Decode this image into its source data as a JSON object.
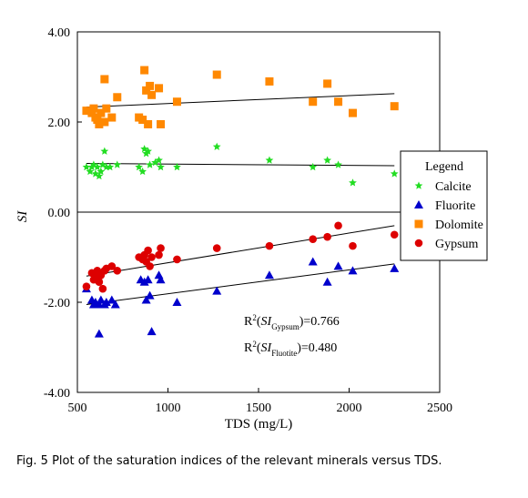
{
  "caption": "Fig. 5 Plot of the saturation indices of the relevant minerals versus TDS.",
  "chart_data": {
    "type": "scatter",
    "xlabel": "TDS (mg/L)",
    "ylabel": "SI",
    "xlim": [
      500,
      2500
    ],
    "ylim": [
      -4,
      4
    ],
    "x_ticks": [
      "500",
      "1000",
      "1500",
      "2000",
      "2500"
    ],
    "y_ticks": [
      "4.00",
      "2.00",
      "0.00",
      "-2.00",
      "-4.00"
    ],
    "zero_line": true,
    "legend": {
      "title": "Legend",
      "position": "right"
    },
    "series": [
      {
        "name": "Calcite",
        "marker": "star",
        "color": "#22dd22",
        "points": [
          [
            550,
            1.0
          ],
          [
            570,
            0.9
          ],
          [
            580,
            1.0
          ],
          [
            590,
            1.05
          ],
          [
            600,
            0.85
          ],
          [
            610,
            1.0
          ],
          [
            620,
            0.8
          ],
          [
            630,
            0.9
          ],
          [
            640,
            1.05
          ],
          [
            650,
            1.35
          ],
          [
            660,
            1.0
          ],
          [
            680,
            1.0
          ],
          [
            720,
            1.05
          ],
          [
            840,
            1.0
          ],
          [
            860,
            0.9
          ],
          [
            870,
            1.4
          ],
          [
            880,
            1.3
          ],
          [
            890,
            1.35
          ],
          [
            900,
            1.05
          ],
          [
            930,
            1.1
          ],
          [
            950,
            1.15
          ],
          [
            960,
            1.0
          ],
          [
            1050,
            1.0
          ],
          [
            1270,
            1.45
          ],
          [
            1560,
            1.15
          ],
          [
            1800,
            1.0
          ],
          [
            1880,
            1.15
          ],
          [
            1940,
            1.05
          ],
          [
            2020,
            0.65
          ],
          [
            2250,
            0.85
          ]
        ],
        "trend": [
          [
            550,
            1.08
          ],
          [
            2250,
            1.03
          ]
        ]
      },
      {
        "name": "Fluorite",
        "marker": "triangle",
        "color": "#0000cc",
        "points": [
          [
            550,
            -1.7
          ],
          [
            580,
            -1.95
          ],
          [
            590,
            -2.05
          ],
          [
            600,
            -2.0
          ],
          [
            620,
            -2.05
          ],
          [
            630,
            -1.95
          ],
          [
            650,
            -2.05
          ],
          [
            660,
            -2.0
          ],
          [
            690,
            -1.95
          ],
          [
            710,
            -2.05
          ],
          [
            620,
            -2.7
          ],
          [
            850,
            -1.5
          ],
          [
            870,
            -1.55
          ],
          [
            880,
            -1.95
          ],
          [
            890,
            -1.5
          ],
          [
            900,
            -1.85
          ],
          [
            910,
            -2.65
          ],
          [
            950,
            -1.4
          ],
          [
            960,
            -1.5
          ],
          [
            1050,
            -2.0
          ],
          [
            1270,
            -1.75
          ],
          [
            1560,
            -1.4
          ],
          [
            1800,
            -1.1
          ],
          [
            1880,
            -1.55
          ],
          [
            1940,
            -1.2
          ],
          [
            2020,
            -1.3
          ],
          [
            2250,
            -1.25
          ]
        ],
        "trend": [
          [
            550,
            -2.05
          ],
          [
            2250,
            -1.15
          ]
        ]
      },
      {
        "name": "Dolomite",
        "marker": "square",
        "color": "#ff8800",
        "points": [
          [
            550,
            2.25
          ],
          [
            580,
            2.2
          ],
          [
            590,
            2.3
          ],
          [
            600,
            2.1
          ],
          [
            610,
            2.05
          ],
          [
            620,
            1.95
          ],
          [
            630,
            2.2
          ],
          [
            650,
            2.0
          ],
          [
            650,
            2.95
          ],
          [
            660,
            2.3
          ],
          [
            690,
            2.1
          ],
          [
            720,
            2.55
          ],
          [
            840,
            2.1
          ],
          [
            860,
            2.05
          ],
          [
            870,
            3.15
          ],
          [
            880,
            2.7
          ],
          [
            890,
            1.95
          ],
          [
            900,
            2.8
          ],
          [
            910,
            2.6
          ],
          [
            950,
            2.75
          ],
          [
            960,
            1.95
          ],
          [
            1050,
            2.45
          ],
          [
            1270,
            3.05
          ],
          [
            1560,
            2.9
          ],
          [
            1800,
            2.45
          ],
          [
            1880,
            2.85
          ],
          [
            1940,
            2.45
          ],
          [
            2020,
            2.2
          ],
          [
            2250,
            2.35
          ]
        ],
        "trend": [
          [
            550,
            2.33
          ],
          [
            2250,
            2.63
          ]
        ]
      },
      {
        "name": "Gypsum",
        "marker": "circle",
        "color": "#dd0000",
        "points": [
          [
            550,
            -1.65
          ],
          [
            580,
            -1.35
          ],
          [
            590,
            -1.5
          ],
          [
            600,
            -1.45
          ],
          [
            610,
            -1.3
          ],
          [
            620,
            -1.55
          ],
          [
            630,
            -1.4
          ],
          [
            640,
            -1.7
          ],
          [
            650,
            -1.3
          ],
          [
            660,
            -1.25
          ],
          [
            690,
            -1.2
          ],
          [
            720,
            -1.3
          ],
          [
            840,
            -1.0
          ],
          [
            860,
            -1.05
          ],
          [
            870,
            -0.95
          ],
          [
            880,
            -1.1
          ],
          [
            890,
            -0.85
          ],
          [
            900,
            -1.2
          ],
          [
            910,
            -1.0
          ],
          [
            950,
            -0.95
          ],
          [
            960,
            -0.8
          ],
          [
            1050,
            -1.05
          ],
          [
            1270,
            -0.8
          ],
          [
            1560,
            -0.75
          ],
          [
            1800,
            -0.6
          ],
          [
            1880,
            -0.55
          ],
          [
            1940,
            -0.3
          ],
          [
            2020,
            -0.75
          ],
          [
            2250,
            -0.5
          ]
        ],
        "trend": [
          [
            550,
            -1.42
          ],
          [
            2250,
            -0.3
          ]
        ]
      }
    ],
    "annotations": {
      "r2_gypsum": {
        "prefix": "R",
        "sup": "2",
        "open": "(",
        "si": "SI",
        "sub": "Gypsum",
        "close": ")=0.766"
      },
      "r2_fluorite": {
        "prefix": "R",
        "sup": "2",
        "open": "(",
        "si": "SI",
        "sub": "Fluotite",
        "close": ")=0.480"
      }
    }
  }
}
